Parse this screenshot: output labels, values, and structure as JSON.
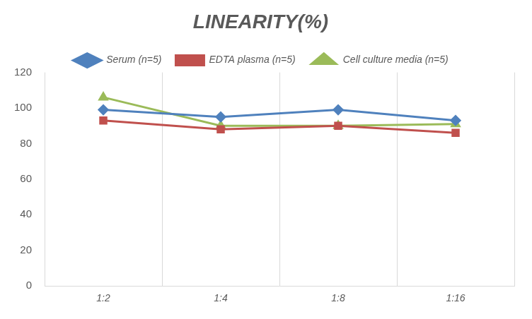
{
  "chart_data": {
    "type": "line",
    "title": "LINEARITY(%)",
    "categories": [
      "1:2",
      "1:4",
      "1:8",
      "1:16"
    ],
    "series": [
      {
        "name": "Serum (n=5)",
        "color": "#4f81bd",
        "marker": "diamond",
        "values": [
          99,
          95,
          99,
          93
        ]
      },
      {
        "name": "EDTA plasma (n=5)",
        "color": "#c0504d",
        "marker": "square",
        "values": [
          93,
          88,
          90,
          86
        ]
      },
      {
        "name": "Cell culture media (n=5)",
        "color": "#9bbb59",
        "marker": "triangle",
        "values": [
          106,
          90,
          90,
          91
        ]
      }
    ],
    "ylim": [
      0,
      120
    ],
    "yticks": [
      0,
      20,
      40,
      60,
      80,
      100,
      120
    ],
    "grid": true,
    "legend": "top"
  }
}
